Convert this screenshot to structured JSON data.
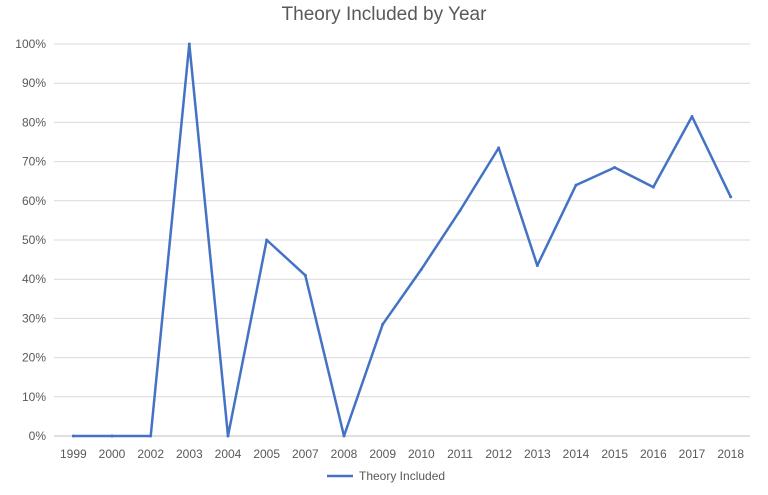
{
  "chart_data": {
    "type": "line",
    "title": "Theory Included by Year",
    "xlabel": "",
    "ylabel": "",
    "categories": [
      "1999",
      "2000",
      "2002",
      "2003",
      "2004",
      "2005",
      "2007",
      "2008",
      "2009",
      "2010",
      "2011",
      "2012",
      "2013",
      "2014",
      "2015",
      "2016",
      "2017",
      "2018"
    ],
    "series": [
      {
        "name": "Theory Included",
        "values": [
          0,
          0,
          0,
          100,
          0,
          50,
          41,
          0,
          28.5,
          42.5,
          57.5,
          73.5,
          43.5,
          64,
          68.5,
          63.5,
          81.5,
          61
        ],
        "color": "#4472C4"
      }
    ],
    "ylim": [
      0,
      100
    ],
    "yticks": [
      "0%",
      "10%",
      "20%",
      "30%",
      "40%",
      "50%",
      "60%",
      "70%",
      "80%",
      "90%",
      "100%"
    ],
    "grid": true,
    "legend": "bottom-center"
  }
}
